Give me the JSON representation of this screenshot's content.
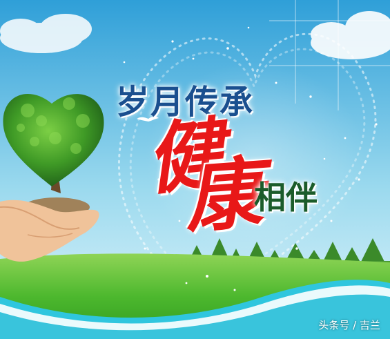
{
  "headline": "岁月传承",
  "emphasis": {
    "char1": "健",
    "char2": "康"
  },
  "subhead": "相伴",
  "watermark": "头条号 / 吉兰",
  "colors": {
    "sky_top": "#2f9fd8",
    "sky_bottom": "#d6f2fb",
    "grass": "#4db82e",
    "headline": "#1a4f8f",
    "emphasis": "#e81818",
    "subhead": "#1b5c2a",
    "wave": "#2fc6de"
  }
}
